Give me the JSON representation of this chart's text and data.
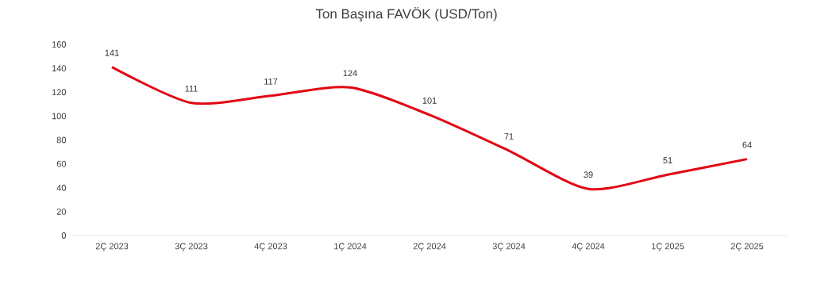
{
  "chart_data": {
    "type": "line",
    "title": "Ton Başına FAVÖK (USD/Ton)",
    "categories": [
      "2Ç 2023",
      "3Ç 2023",
      "4Ç 2023",
      "1Ç 2024",
      "2Ç 2024",
      "3Ç 2024",
      "4Ç 2024",
      "1Ç 2025",
      "2Ç 2025"
    ],
    "values": [
      141,
      111,
      117,
      124,
      101,
      71,
      39,
      51,
      64
    ],
    "color": "#e30613",
    "data_labels": true,
    "marker": "none",
    "line_style": "solid",
    "ylim": [
      0,
      160
    ],
    "yticks": [
      0,
      20,
      40,
      60,
      80,
      100,
      120,
      140,
      160
    ]
  }
}
